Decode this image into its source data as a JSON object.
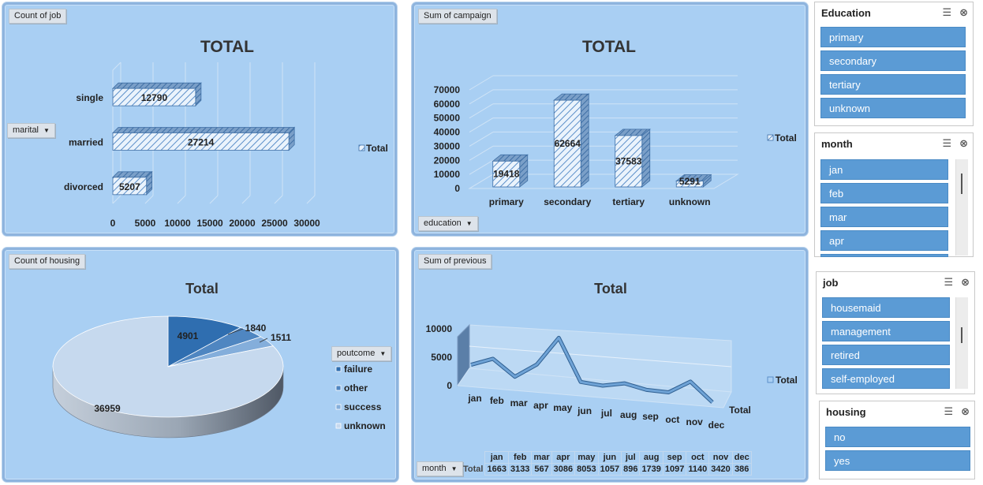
{
  "colors": {
    "panel": "#a9cff3",
    "bar": "#5b9bd5",
    "slicer_item": "#5b9bd5"
  },
  "job_chart": {
    "field": "Count of job",
    "title": "TOTAL",
    "axis_field": "marital",
    "legend": "Total"
  },
  "campaign_chart": {
    "field": "Sum of campaign",
    "title": "TOTAL",
    "axis_field": "education",
    "legend": "Total"
  },
  "housing_chart": {
    "field": "Count of housing",
    "title": "Total",
    "legend_field": "poutcome",
    "legend_items": [
      "failure",
      "other",
      "success",
      "unknown"
    ]
  },
  "previous_chart": {
    "field": "Sum of previous",
    "title": "Total",
    "axis_field": "month",
    "legend": "Total",
    "series_label": "Total",
    "table_row_label": "Total"
  },
  "chart_data": [
    {
      "type": "bar",
      "orientation": "horizontal",
      "title": "TOTAL",
      "categories": [
        "single",
        "married",
        "divorced"
      ],
      "values": [
        12790,
        27214,
        5207
      ],
      "xlim": [
        0,
        30000
      ],
      "xticks": [
        0,
        5000,
        10000,
        15000,
        20000,
        25000,
        30000
      ],
      "series": [
        {
          "name": "Total",
          "values": [
            12790,
            27214,
            5207
          ]
        }
      ]
    },
    {
      "type": "bar",
      "title": "TOTAL",
      "categories": [
        "primary",
        "secondary",
        "tertiary",
        "unknown"
      ],
      "values": [
        19418,
        62664,
        37583,
        5291
      ],
      "ylim": [
        0,
        70000
      ],
      "yticks": [
        0,
        10000,
        20000,
        30000,
        40000,
        50000,
        60000,
        70000
      ],
      "series": [
        {
          "name": "Total",
          "values": [
            19418,
            62664,
            37583,
            5291
          ]
        }
      ]
    },
    {
      "type": "pie",
      "title": "Total",
      "categories": [
        "failure",
        "other",
        "success",
        "unknown"
      ],
      "values": [
        4901,
        1840,
        1511,
        36959
      ]
    },
    {
      "type": "line",
      "title": "Total",
      "categories": [
        "jan",
        "feb",
        "mar",
        "apr",
        "may",
        "jun",
        "jul",
        "aug",
        "sep",
        "oct",
        "nov",
        "dec"
      ],
      "values": [
        1663,
        3133,
        567,
        3086,
        8053,
        1057,
        896,
        1739,
        1097,
        1140,
        3420,
        386
      ],
      "ylim": [
        0,
        10000
      ],
      "yticks": [
        0,
        5000,
        10000
      ],
      "series": [
        {
          "name": "Total",
          "values": [
            1663,
            3133,
            567,
            3086,
            8053,
            1057,
            896,
            1739,
            1097,
            1140,
            3420,
            386
          ]
        }
      ]
    }
  ],
  "slicers": {
    "education": {
      "title": "Education",
      "items": [
        "primary",
        "secondary",
        "tertiary",
        "unknown"
      ]
    },
    "month": {
      "title": "month",
      "items": [
        "jan",
        "feb",
        "mar",
        "apr"
      ]
    },
    "job": {
      "title": "job",
      "items": [
        "housemaid",
        "management",
        "retired",
        "self-employed"
      ]
    },
    "housing": {
      "title": "housing",
      "items": [
        "no",
        "yes"
      ]
    }
  },
  "icons": {
    "multiselect": "multi-select-icon",
    "clear_filter": "clear-filter-icon",
    "dropdown": "dropdown-arrow-icon"
  }
}
